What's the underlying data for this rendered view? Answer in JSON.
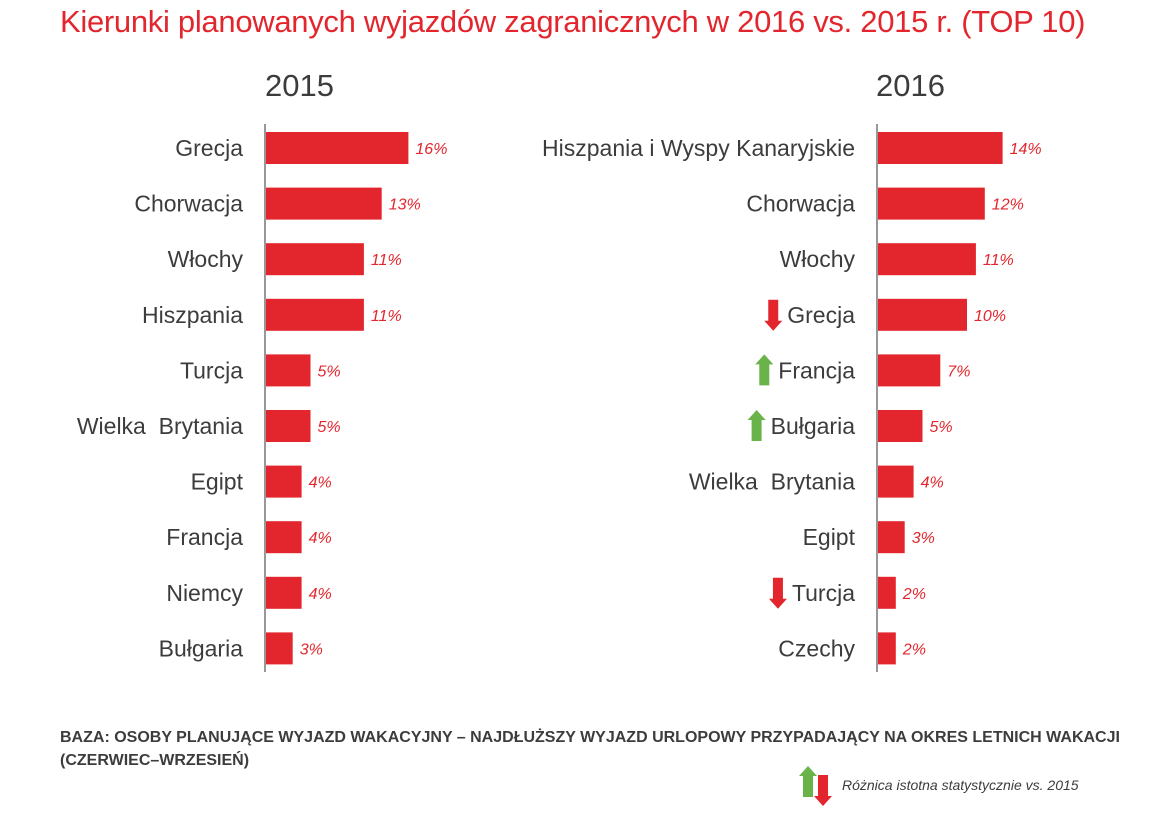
{
  "title": "Kierunki planowanych wyjazdów zagranicznych w 2016 vs. 2015 r. (TOP 10)",
  "colors": {
    "bar": "#e3262d",
    "up": "#6ab24a",
    "down": "#e3262d",
    "label": "#3c3c3c",
    "value": "#e3262d"
  },
  "chart_data": [
    {
      "type": "bar",
      "orientation": "horizontal",
      "title": "2015",
      "categories": [
        "Grecja",
        "Chorwacja",
        "Włochy",
        "Hiszpania",
        "Turcja",
        "Wielka  Brytania",
        "Egipt",
        "Francja",
        "Niemcy",
        "Bułgaria"
      ],
      "values": [
        16,
        13,
        11,
        11,
        5,
        5,
        4,
        4,
        4,
        3
      ],
      "value_labels": [
        "16%",
        "13%",
        "11%",
        "11%",
        "5%",
        "5%",
        "4%",
        "4%",
        "4%",
        "3%"
      ],
      "unit": "%"
    },
    {
      "type": "bar",
      "orientation": "horizontal",
      "title": "2016",
      "categories": [
        "Hiszpania i Wyspy Kanaryjskie",
        "Chorwacja",
        "Włochy",
        "Grecja",
        "Francja",
        "Bułgaria",
        "Wielka  Brytania",
        "Egipt",
        "Turcja",
        "Czechy"
      ],
      "values": [
        14,
        12,
        11,
        10,
        7,
        5,
        4,
        3,
        2,
        2
      ],
      "value_labels": [
        "14%",
        "12%",
        "11%",
        "10%",
        "7%",
        "5%",
        "4%",
        "3%",
        "2%",
        "2%"
      ],
      "change_markers": [
        null,
        null,
        null,
        "down",
        "up",
        "up",
        null,
        null,
        "down",
        null
      ],
      "unit": "%"
    }
  ],
  "base_note": "BAZA: OSOBY PLANUJĄCE WYJAZD WAKACYJNY – NAJDŁUŻSZY WYJAZD URLOPOWY PRZYPADAJĄCY NA OKRES LETNICH WAKACJI (CZERWIEC–WRZESIEŃ)",
  "legend": {
    "text": "Różnica istotna statystycznie vs. 2015",
    "icons": [
      "arrow-up-icon",
      "arrow-down-icon"
    ]
  }
}
